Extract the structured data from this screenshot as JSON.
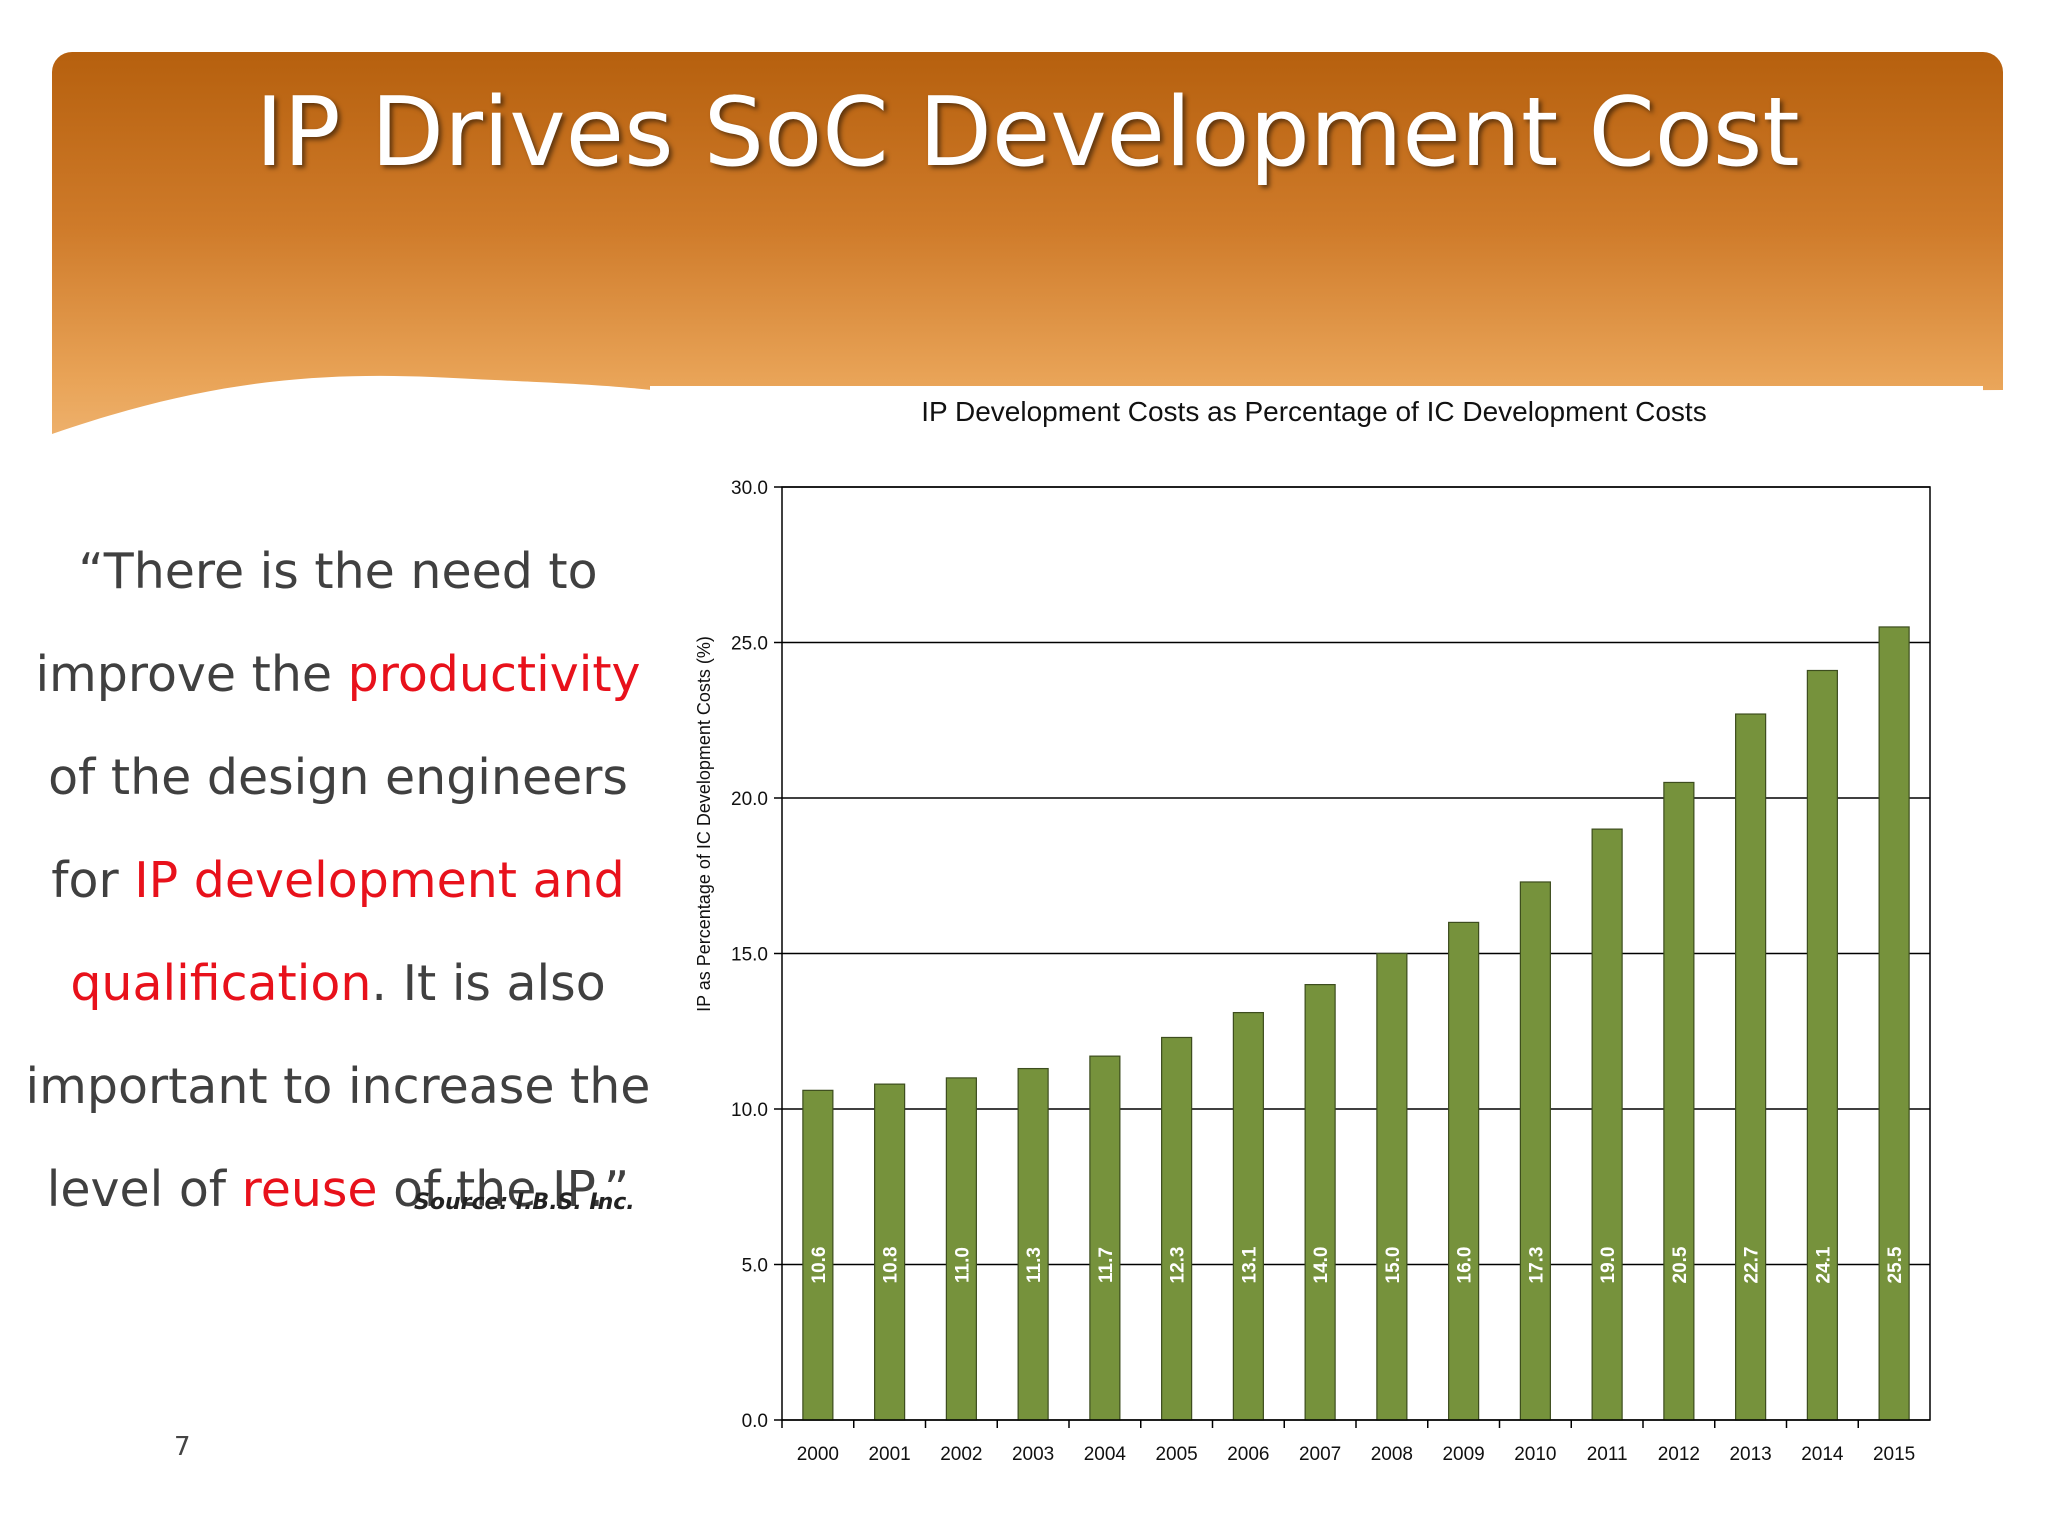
{
  "slide": {
    "title": "IP Drives SoC Development Cost",
    "page_number": "7",
    "source": "Source:  I.B.S. Inc.",
    "colors": {
      "header_top": "#b6600e",
      "header_bottom": "#f2bd80",
      "accent_red": "#e8111b",
      "bar": "#76923c"
    }
  },
  "quote": {
    "p1": "“There is the need to improve the ",
    "r1": "productivity",
    "p2": " of the design engineers for ",
    "r2": "IP development and qualification",
    "p3": ". It is also important to increase the level of ",
    "r3": "reuse",
    "p4": " of the IP.”"
  },
  "chart_data": {
    "type": "bar",
    "title": "IP Development Costs as Percentage of IC Development Costs",
    "xlabel": "",
    "ylabel": "IP as Percentage of IC Development Costs (%)",
    "categories": [
      "2000",
      "2001",
      "2002",
      "2003",
      "2004",
      "2005",
      "2006",
      "2007",
      "2008",
      "2009",
      "2010",
      "2011",
      "2012",
      "2013",
      "2014",
      "2015"
    ],
    "values": [
      10.6,
      10.8,
      11.0,
      11.3,
      11.7,
      12.3,
      13.1,
      14.0,
      15.0,
      16.0,
      17.3,
      19.0,
      20.5,
      22.7,
      24.1,
      25.5
    ],
    "data_labels": [
      "10.6",
      "10.8",
      "11.0",
      "11.3",
      "11.7",
      "12.3",
      "13.1",
      "14.0",
      "15.0",
      "16.0",
      "17.3",
      "19.0",
      "20.5",
      "22.7",
      "24.1",
      "25.5"
    ],
    "ylim": [
      0,
      30
    ],
    "yticks": [
      "0.0",
      "5.0",
      "10.0",
      "15.0",
      "20.0",
      "25.0",
      "30.0"
    ],
    "grid": true,
    "legend": "none",
    "bar_color": "#76923c"
  }
}
